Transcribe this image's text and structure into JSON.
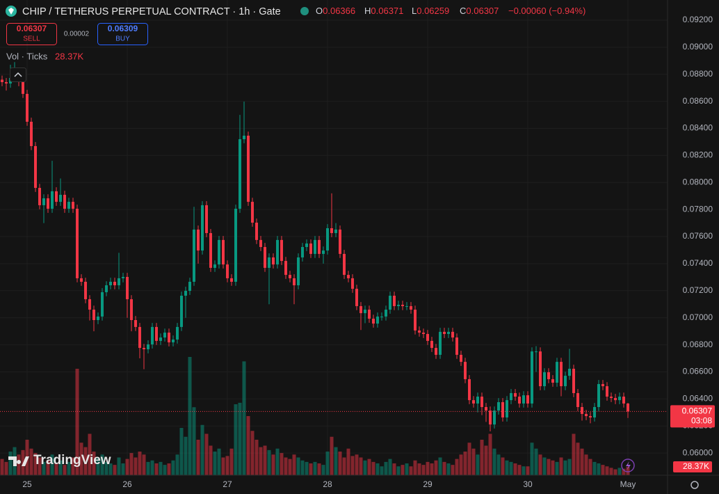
{
  "chart_data": {
    "type": "candlestick",
    "title": "CHIP / TETHERUS PERPETUAL CONTRACT · 1h · Gate",
    "ohlc_labels": [
      "O",
      "H",
      "L",
      "C"
    ],
    "change": "−0.00060 (−0.94%)",
    "trade": {
      "sell": {
        "price": 0.06307,
        "label": "SELL"
      },
      "spread": 2e-05,
      "buy": {
        "price": 0.06309,
        "label": "BUY"
      }
    },
    "volume_name": "Vol · Ticks",
    "volume_label": "28.37K",
    "countdown": "03:08",
    "watermark": "TradingView",
    "up_color": "#089981",
    "down_color": "#f23645",
    "grid": true,
    "xlim": [
      -0.5,
      159.5
    ],
    "xticks": [
      {
        "value": 6,
        "label": "25"
      },
      {
        "value": 30,
        "label": "26"
      },
      {
        "value": 54,
        "label": "27"
      },
      {
        "value": 78,
        "label": "28"
      },
      {
        "value": 102,
        "label": "29"
      },
      {
        "value": 126,
        "label": "30"
      },
      {
        "value": 150,
        "label": "May"
      }
    ],
    "ylim": [
      0.05836,
      0.09349
    ],
    "yticks": [
      {
        "value": 0.06,
        "label": "0.06000"
      },
      {
        "value": 0.062,
        "label": "0.06200"
      },
      {
        "value": 0.064,
        "label": "0.06400"
      },
      {
        "value": 0.066,
        "label": "0.06600"
      },
      {
        "value": 0.068,
        "label": "0.06800"
      },
      {
        "value": 0.07,
        "label": "0.07000"
      },
      {
        "value": 0.072,
        "label": "0.07200"
      },
      {
        "value": 0.074,
        "label": "0.07400"
      },
      {
        "value": 0.076,
        "label": "0.07600"
      },
      {
        "value": 0.078,
        "label": "0.07800"
      },
      {
        "value": 0.08,
        "label": "0.08000"
      },
      {
        "value": 0.082,
        "label": "0.08200"
      },
      {
        "value": 0.084,
        "label": "0.08400"
      },
      {
        "value": 0.086,
        "label": "0.08600"
      },
      {
        "value": 0.088,
        "label": "0.08800"
      },
      {
        "value": 0.09,
        "label": "0.09000"
      },
      {
        "value": 0.092,
        "label": "0.09200"
      }
    ],
    "open": [
      0.0876,
      0.08742,
      0.08732,
      0.08773,
      0.08809,
      0.08742,
      0.08655,
      0.08449,
      0.08269,
      0.0796,
      0.07832,
      0.07883,
      0.07806,
      0.07935,
      0.07857,
      0.07909,
      0.07806,
      0.07857,
      0.07806,
      0.07292,
      0.07266,
      0.07137,
      0.0706,
      0.06983,
      0.07009,
      0.07189,
      0.0724,
      0.07266,
      0.0724,
      0.07292,
      0.07302,
      0.07137,
      0.06983,
      0.06932,
      0.06777,
      0.06767,
      0.06803,
      0.06932,
      0.06829,
      0.06854,
      0.0689,
      0.06818,
      0.06839,
      0.06932,
      0.07163,
      0.07199,
      0.07266,
      0.07652,
      0.07497,
      0.07832,
      0.07626,
      0.07369,
      0.07394,
      0.07575,
      0.07394,
      0.07292,
      0.07266,
      0.07806,
      0.0832,
      0.08346,
      0.07857,
      0.07703,
      0.07575,
      0.07523,
      0.07369,
      0.07446,
      0.07394,
      0.07575,
      0.0742,
      0.07317,
      0.07292,
      0.0724,
      0.07446,
      0.07523,
      0.07549,
      0.07472,
      0.07575,
      0.07472,
      0.07497,
      0.07662,
      0.07626,
      0.07652,
      0.07472,
      0.07317,
      0.07292,
      0.07214,
      0.07086,
      0.07034,
      0.0706,
      0.06993,
      0.06957,
      0.07009,
      0.07009,
      0.0706,
      0.07163,
      0.07086,
      0.07096,
      0.07086,
      0.07086,
      0.0706,
      0.06906,
      0.0689,
      0.0688,
      0.06829,
      0.06777,
      0.06726,
      0.06896,
      0.0688,
      0.06896,
      0.06854,
      0.06726,
      0.06674,
      0.06546,
      0.06391,
      0.06366,
      0.06417,
      0.0634,
      0.06314,
      0.06211,
      0.06314,
      0.06376,
      0.06263,
      0.06391,
      0.06443,
      0.06417,
      0.06366,
      0.06427,
      0.06366,
      0.06751,
      0.06751,
      0.06494,
      0.06597,
      0.06546,
      0.0652,
      0.06674,
      0.06494,
      0.06571,
      0.06623,
      0.06443,
      0.0634,
      0.06289,
      0.06273,
      0.06263,
      0.0634,
      0.0651,
      0.06494,
      0.06417,
      0.06407,
      0.06391,
      0.06417,
      0.06366
    ],
    "high": [
      0.0879,
      0.08772,
      0.0887,
      0.0889,
      0.0884,
      0.08772,
      0.08685,
      0.08479,
      0.08299,
      0.0799,
      0.07913,
      0.07913,
      0.0816,
      0.07965,
      0.0803,
      0.07939,
      0.07887,
      0.07887,
      0.07836,
      0.07322,
      0.07296,
      0.07167,
      0.0709,
      0.07039,
      0.07219,
      0.0727,
      0.07296,
      0.07296,
      0.0748,
      0.07332,
      0.07332,
      0.07167,
      0.07013,
      0.06962,
      0.06807,
      0.06833,
      0.06962,
      0.06962,
      0.06884,
      0.0692,
      0.0692,
      0.06869,
      0.06962,
      0.07193,
      0.07229,
      0.07296,
      0.0782,
      0.07682,
      0.07862,
      0.07862,
      0.07656,
      0.07424,
      0.07605,
      0.07605,
      0.07424,
      0.07322,
      0.07836,
      0.085,
      0.08598,
      0.08376,
      0.07887,
      0.07733,
      0.07605,
      0.07553,
      0.07476,
      0.07476,
      0.07605,
      0.07605,
      0.0745,
      0.07347,
      0.07322,
      0.07476,
      0.07553,
      0.07579,
      0.07579,
      0.07605,
      0.07605,
      0.07527,
      0.07692,
      0.0792,
      0.077,
      0.07682,
      0.07502,
      0.07347,
      0.07322,
      0.07244,
      0.07116,
      0.0709,
      0.0709,
      0.07023,
      0.07039,
      0.07039,
      0.0709,
      0.07193,
      0.07193,
      0.07126,
      0.07126,
      0.07116,
      0.07116,
      0.0709,
      0.06936,
      0.0692,
      0.0691,
      0.06859,
      0.06807,
      0.06926,
      0.06926,
      0.06926,
      0.06926,
      0.06884,
      0.06756,
      0.06704,
      0.06576,
      0.06421,
      0.06447,
      0.06447,
      0.0637,
      0.06344,
      0.06344,
      0.06406,
      0.06406,
      0.06421,
      0.06473,
      0.06473,
      0.06447,
      0.06457,
      0.06457,
      0.06781,
      0.0679,
      0.06781,
      0.06627,
      0.06627,
      0.06576,
      0.06704,
      0.06704,
      0.06601,
      0.0677,
      0.06653,
      0.06473,
      0.0637,
      0.06319,
      0.06303,
      0.0637,
      0.0654,
      0.0654,
      0.06524,
      0.06447,
      0.06437,
      0.06447,
      0.06447,
      0.06371
    ],
    "low": [
      0.08712,
      0.0868,
      0.087,
      0.0875,
      0.08712,
      0.08625,
      0.08419,
      0.08239,
      0.0793,
      0.07802,
      0.077,
      0.07776,
      0.07776,
      0.07827,
      0.07827,
      0.07776,
      0.07776,
      0.07776,
      0.07262,
      0.07236,
      0.07107,
      0.0698,
      0.069,
      0.06953,
      0.06979,
      0.07159,
      0.0721,
      0.0721,
      0.0721,
      0.07262,
      0.07,
      0.069,
      0.06902,
      0.067,
      0.0662,
      0.06737,
      0.06773,
      0.06799,
      0.06799,
      0.06824,
      0.06788,
      0.06788,
      0.06809,
      0.06902,
      0.07,
      0.07169,
      0.07236,
      0.074,
      0.07467,
      0.07596,
      0.07339,
      0.07339,
      0.07364,
      0.07364,
      0.07262,
      0.07236,
      0.07236,
      0.07776,
      0.0829,
      0.07827,
      0.07673,
      0.07545,
      0.07493,
      0.07339,
      0.071,
      0.07364,
      0.07364,
      0.0739,
      0.07287,
      0.07262,
      0.071,
      0.0721,
      0.07416,
      0.07493,
      0.07442,
      0.07442,
      0.07442,
      0.074,
      0.07467,
      0.07596,
      0.07596,
      0.07442,
      0.07287,
      0.07262,
      0.07184,
      0.07056,
      0.0691,
      0.0696,
      0.06963,
      0.06927,
      0.06927,
      0.06979,
      0.06979,
      0.0703,
      0.07056,
      0.07056,
      0.07056,
      0.07056,
      0.0703,
      0.06876,
      0.0686,
      0.0685,
      0.06799,
      0.06747,
      0.06696,
      0.06696,
      0.0685,
      0.0685,
      0.06824,
      0.06696,
      0.06644,
      0.06516,
      0.06361,
      0.06336,
      0.063,
      0.0628,
      0.0623,
      0.0616,
      0.06181,
      0.06284,
      0.06233,
      0.06233,
      0.06361,
      0.06387,
      0.06336,
      0.06336,
      0.06336,
      0.06336,
      0.066,
      0.06464,
      0.06464,
      0.06516,
      0.0649,
      0.0649,
      0.0642,
      0.06464,
      0.06541,
      0.06413,
      0.0631,
      0.0624,
      0.06243,
      0.0622,
      0.06233,
      0.0631,
      0.06464,
      0.06387,
      0.06377,
      0.06361,
      0.06361,
      0.06336,
      0.06259
    ],
    "close": [
      0.08742,
      0.08732,
      0.08773,
      0.08809,
      0.08742,
      0.08655,
      0.08449,
      0.08269,
      0.0796,
      0.07832,
      0.07883,
      0.07806,
      0.07935,
      0.07857,
      0.07909,
      0.07806,
      0.07857,
      0.07806,
      0.07292,
      0.07266,
      0.07137,
      0.0706,
      0.06983,
      0.07009,
      0.07189,
      0.0724,
      0.07266,
      0.0724,
      0.07292,
      0.07302,
      0.07137,
      0.06983,
      0.06932,
      0.06777,
      0.06767,
      0.06803,
      0.06932,
      0.06829,
      0.06854,
      0.0689,
      0.06818,
      0.06839,
      0.06932,
      0.07163,
      0.07199,
      0.07266,
      0.07652,
      0.07497,
      0.07832,
      0.07626,
      0.07369,
      0.07394,
      0.07575,
      0.07394,
      0.07292,
      0.07266,
      0.07806,
      0.0832,
      0.08346,
      0.07857,
      0.07703,
      0.07575,
      0.07523,
      0.07369,
      0.07446,
      0.07394,
      0.07575,
      0.0742,
      0.07317,
      0.07292,
      0.0724,
      0.07446,
      0.07523,
      0.07549,
      0.07472,
      0.07575,
      0.07472,
      0.07497,
      0.07662,
      0.07626,
      0.07652,
      0.07472,
      0.07317,
      0.07292,
      0.07214,
      0.07086,
      0.07034,
      0.0706,
      0.06993,
      0.06957,
      0.07009,
      0.07009,
      0.0706,
      0.07163,
      0.07086,
      0.07096,
      0.07086,
      0.07086,
      0.0706,
      0.06906,
      0.0689,
      0.0688,
      0.06829,
      0.06777,
      0.06726,
      0.06896,
      0.0688,
      0.06896,
      0.06854,
      0.06726,
      0.06674,
      0.06546,
      0.06391,
      0.06366,
      0.06417,
      0.0634,
      0.06314,
      0.06211,
      0.06314,
      0.06376,
      0.06263,
      0.06391,
      0.06443,
      0.06417,
      0.06366,
      0.06427,
      0.06366,
      0.06751,
      0.06751,
      0.06494,
      0.06597,
      0.06546,
      0.0652,
      0.06674,
      0.06494,
      0.06571,
      0.06623,
      0.06443,
      0.0634,
      0.06289,
      0.06273,
      0.06263,
      0.0634,
      0.0651,
      0.06494,
      0.06417,
      0.06407,
      0.06391,
      0.06417,
      0.06366,
      0.06307
    ],
    "volume": [
      55000,
      45000,
      80000,
      95000,
      70000,
      85000,
      120000,
      90000,
      75000,
      60000,
      45000,
      50000,
      70000,
      40000,
      50000,
      35000,
      45000,
      60000,
      360000,
      110000,
      95000,
      140000,
      80000,
      60000,
      70000,
      45000,
      40000,
      35000,
      60000,
      40000,
      55000,
      75000,
      60000,
      80000,
      70000,
      45000,
      50000,
      40000,
      45000,
      35000,
      40000,
      50000,
      70000,
      160000,
      130000,
      400000,
      230000,
      120000,
      170000,
      140000,
      100000,
      80000,
      90000,
      60000,
      65000,
      90000,
      240000,
      245000,
      385000,
      200000,
      150000,
      120000,
      95000,
      100000,
      85000,
      70000,
      90000,
      75000,
      60000,
      55000,
      70000,
      60000,
      50000,
      45000,
      40000,
      45000,
      40000,
      35000,
      80000,
      130000,
      95000,
      80000,
      60000,
      90000,
      65000,
      70000,
      60000,
      50000,
      55000,
      45000,
      40000,
      30000,
      45000,
      55000,
      40000,
      30000,
      35000,
      40000,
      30000,
      50000,
      40000,
      35000,
      45000,
      40000,
      50000,
      60000,
      45000,
      40000,
      35000,
      55000,
      70000,
      80000,
      110000,
      90000,
      70000,
      120000,
      100000,
      140000,
      90000,
      70000,
      60000,
      50000,
      45000,
      40000,
      35000,
      30000,
      30000,
      110000,
      90000,
      70000,
      60000,
      55000,
      50000,
      45000,
      60000,
      50000,
      55000,
      140000,
      110000,
      90000,
      70000,
      55000,
      45000,
      40000,
      35000,
      30000,
      25000,
      20000,
      25000,
      22000,
      28370
    ]
  }
}
